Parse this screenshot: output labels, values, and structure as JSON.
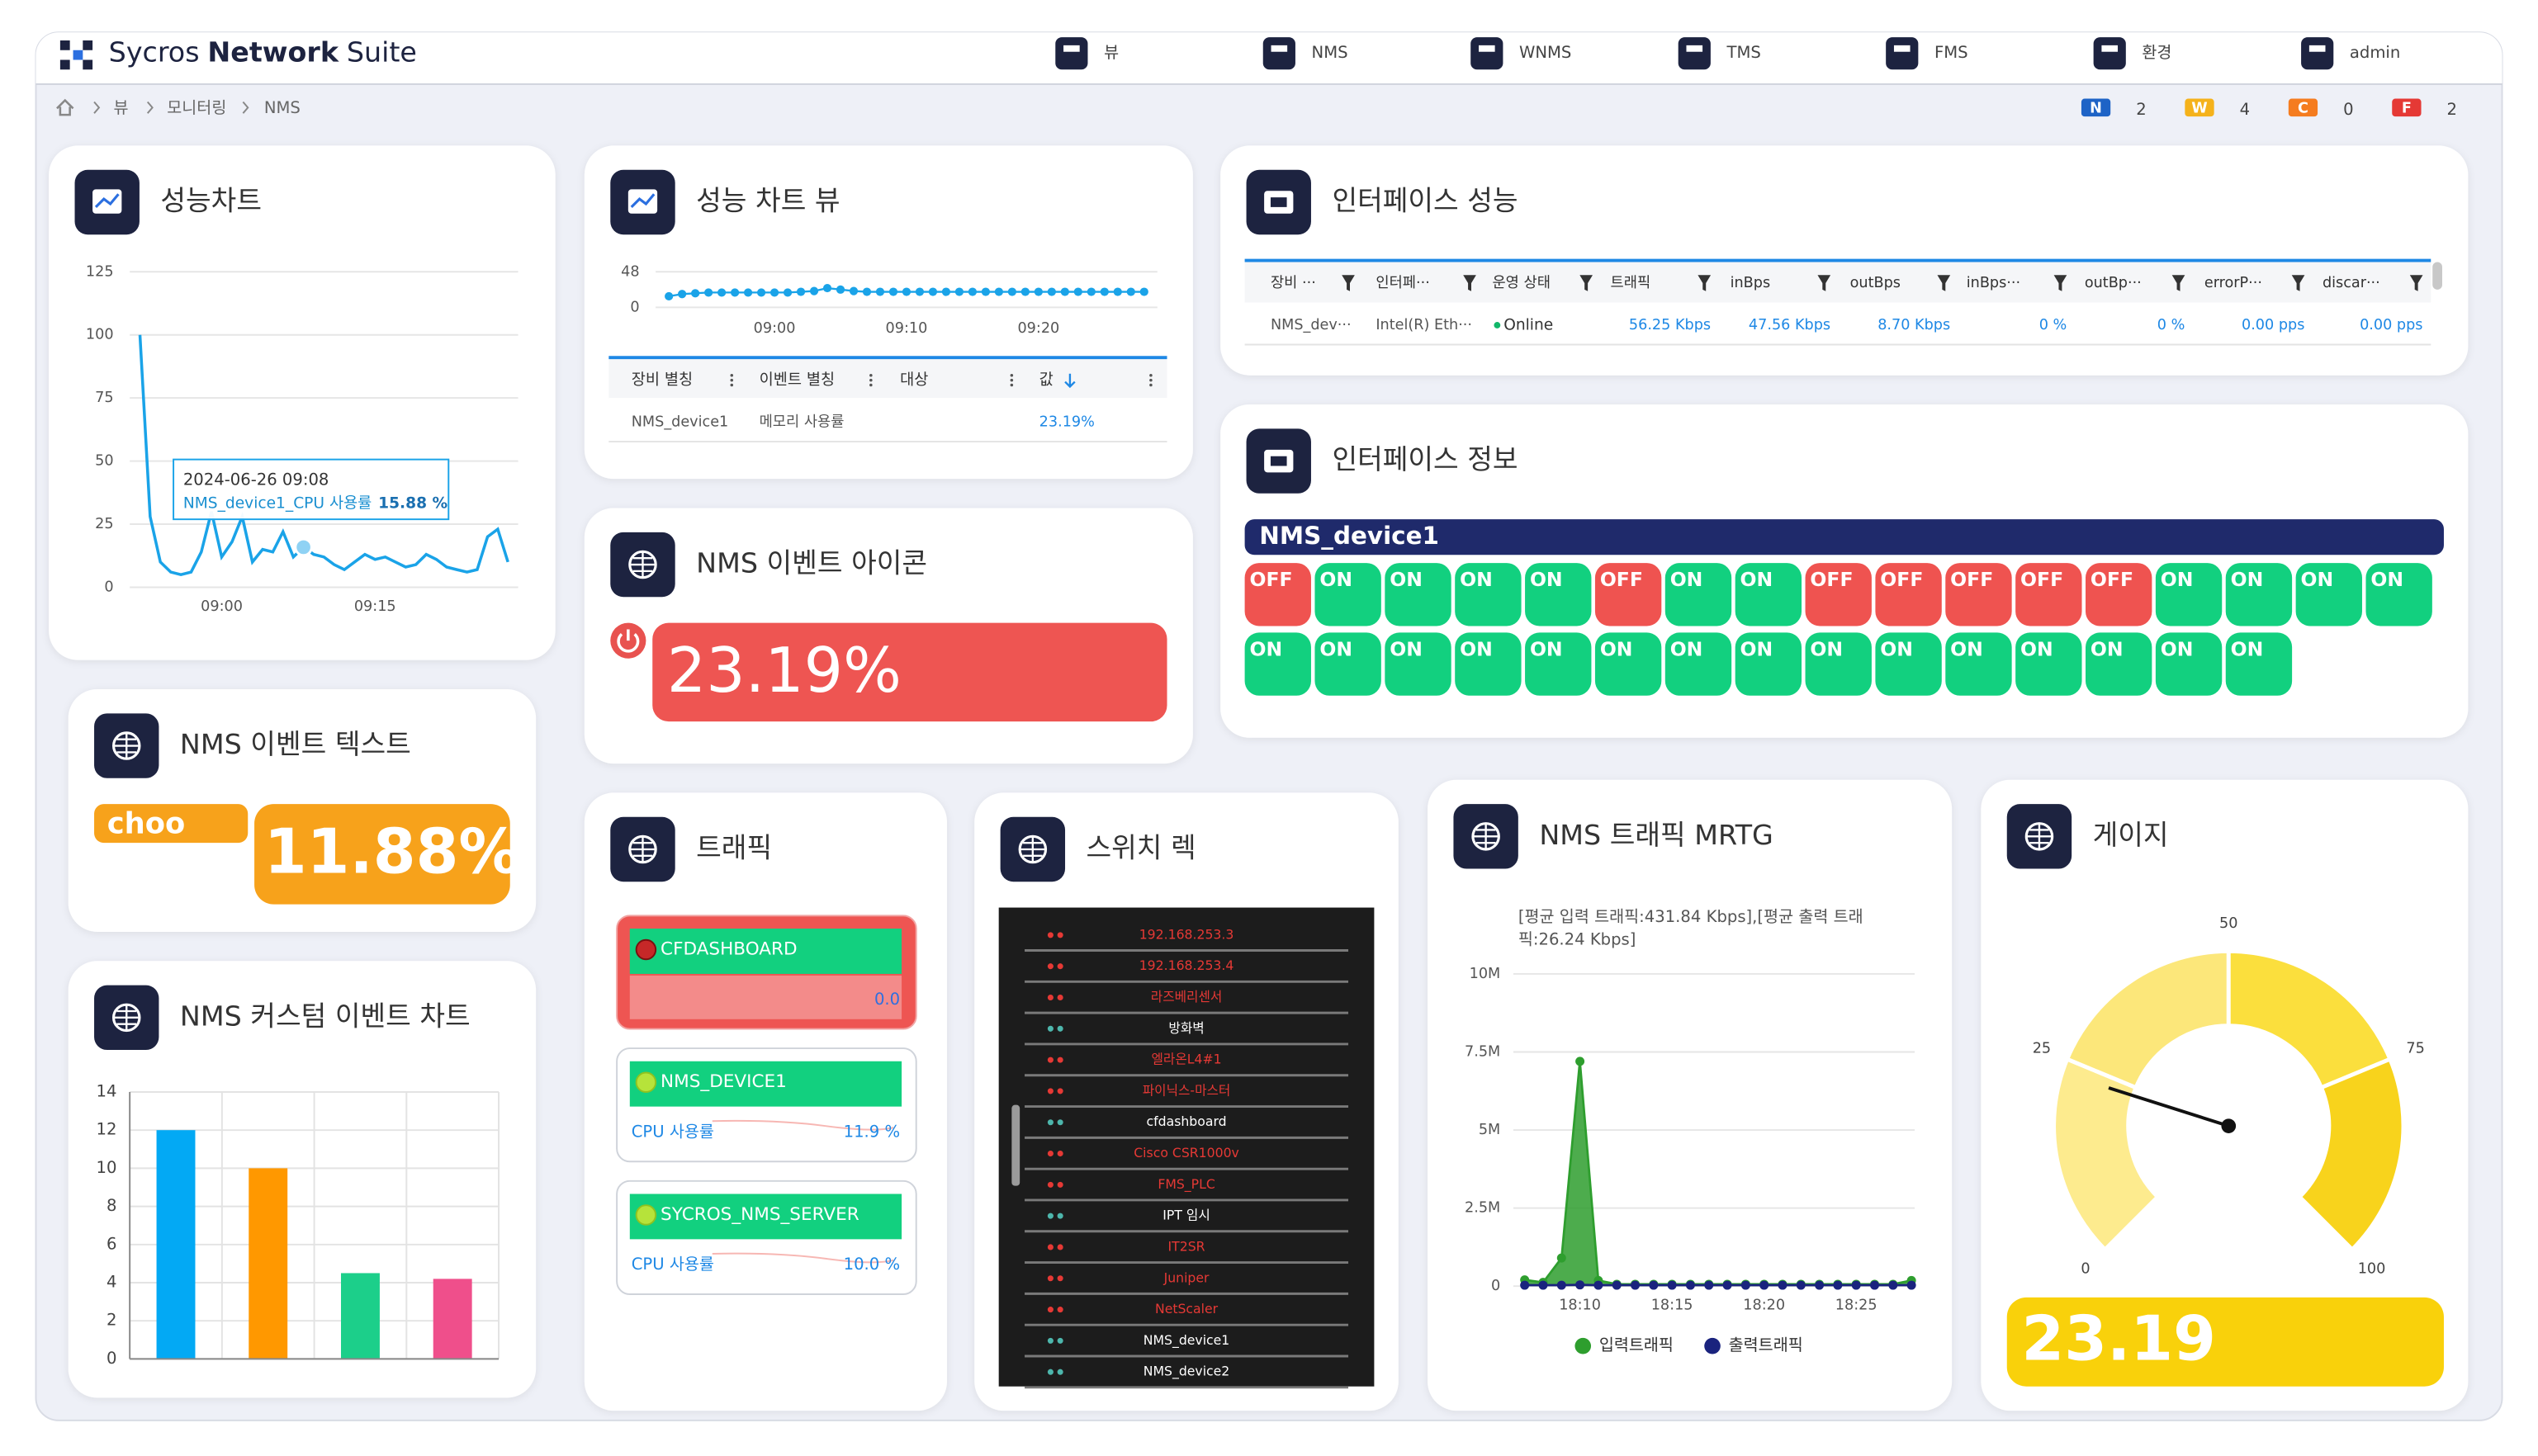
{
  "header": {
    "brand_pre": "Sycros",
    "brand_bold": "Network",
    "brand_post": "Suite",
    "nav": [
      "뷰",
      "NMS",
      "WNMS",
      "TMS",
      "FMS",
      "환경",
      "admin"
    ]
  },
  "breadcrumb": [
    "뷰",
    "모니터링",
    "NMS"
  ],
  "status": [
    {
      "label": "N",
      "count": 2,
      "color": "#1e63c6"
    },
    {
      "label": "W",
      "count": 4,
      "color": "#f5b21b"
    },
    {
      "label": "C",
      "count": 0,
      "color": "#f57c1f"
    },
    {
      "label": "F",
      "count": 2,
      "color": "#e53935"
    }
  ],
  "widgets": {
    "perf_chart": {
      "title": "성능차트",
      "chart": {
        "type": "line",
        "color": "#1aa3e8",
        "grid": true,
        "x": [
          532,
          533,
          534,
          535,
          536,
          537,
          538,
          539,
          540,
          541,
          542,
          543,
          544,
          545,
          546,
          547,
          548,
          549,
          550,
          551,
          552,
          553,
          554,
          555,
          556,
          557,
          558,
          559,
          560,
          561,
          562,
          563,
          564,
          565,
          566,
          567,
          568
        ],
        "values": [
          100,
          28,
          10,
          6,
          5,
          6,
          14,
          30,
          12,
          18,
          28,
          10,
          15,
          14,
          22,
          12,
          15.88,
          13,
          12,
          9,
          7,
          10,
          13,
          11,
          12,
          10,
          8,
          9,
          13,
          11,
          8,
          7,
          6,
          7,
          20,
          23,
          10
        ],
        "xlim": [
          531,
          569
        ],
        "ylim": [
          0,
          125
        ],
        "yticks": [
          0,
          25,
          50,
          75,
          100,
          125
        ],
        "xticks": [
          {
            "value": 540,
            "label": "09:00"
          },
          {
            "value": 555,
            "label": "09:15"
          }
        ]
      },
      "tooltip": {
        "time": "2024-06-26 09:08",
        "series": "NMS_device1_CPU 사용률",
        "value": "15.88 %"
      }
    },
    "perf_view": {
      "title": "성능 차트 뷰",
      "chart": {
        "type": "line",
        "color": "#1aa3e8",
        "grid": true,
        "dots": true,
        "x": [
          532,
          533,
          534,
          535,
          536,
          537,
          538,
          539,
          540,
          541,
          542,
          543,
          544,
          545,
          546,
          547,
          548,
          549,
          550,
          551,
          552,
          553,
          554,
          555,
          556,
          557,
          558,
          559,
          560,
          561,
          562,
          563,
          564,
          565,
          566,
          567,
          568
        ],
        "values": [
          15,
          18,
          19,
          20,
          20,
          20,
          20,
          20,
          20,
          20,
          21,
          22,
          26,
          24,
          22,
          21,
          21,
          21,
          21,
          21,
          21,
          21,
          21,
          21,
          21,
          21,
          21,
          21,
          21,
          21,
          21,
          21,
          21,
          21,
          21,
          21,
          21
        ],
        "xlim": [
          531,
          569
        ],
        "ylim": [
          0,
          48
        ],
        "yticks": [
          0,
          48
        ],
        "xticks": [
          {
            "value": 540,
            "label": "09:00"
          },
          {
            "value": 550,
            "label": "09:10"
          },
          {
            "value": 560,
            "label": "09:20"
          }
        ]
      },
      "table": {
        "columns": [
          "장비 별칭",
          "이벤트 별칭",
          "대상",
          "값"
        ],
        "row": {
          "device": "NMS_device1",
          "event": "메모리 사용률",
          "value": "23.19%"
        }
      }
    },
    "iface_perf": {
      "title": "인터페이스 성능",
      "columns": [
        "장비 ···",
        "인터페···",
        "운영 상태",
        "트래픽",
        "inBps",
        "outBps",
        "inBps···",
        "outBp···",
        "errorP···",
        "discar···"
      ],
      "row": [
        "NMS_dev···",
        "Intel(R) Eth···",
        "Online",
        "56.25 Kbps",
        "47.56 Kbps",
        "8.70 Kbps",
        "0 %",
        "0 %",
        "0.00 pps",
        "0.00 pps"
      ]
    },
    "iface_info": {
      "title": "인터페이스 정보",
      "device": "NMS_device1",
      "on_color": "#12d07f",
      "off_color": "#ef5350",
      "ports": [
        "OFF",
        "ON",
        "ON",
        "ON",
        "ON",
        "OFF",
        "ON",
        "ON",
        "OFF",
        "OFF",
        "OFF",
        "OFF",
        "OFF",
        "ON",
        "ON",
        "ON",
        "ON",
        "ON",
        "ON",
        "ON",
        "ON",
        "ON",
        "ON",
        "ON",
        "ON",
        "ON",
        "ON",
        "ON",
        "ON",
        "ON",
        "ON",
        "ON"
      ]
    },
    "event_icon": {
      "title": "NMS 이벤트 아이콘",
      "value": "23.19%"
    },
    "event_text": {
      "title": "NMS 이벤트 텍스트",
      "label": "choo",
      "value": "11.88%"
    },
    "custom_chart": {
      "title": "NMS 커스텀 이벤트 차트",
      "chart": {
        "type": "bar",
        "grid": true,
        "categories": [
          null,
          null,
          null,
          null
        ],
        "values": [
          12,
          10,
          4.5,
          4.2
        ],
        "colors": [
          "#03a9f4",
          "#ff9800",
          "#1ccf8a",
          "#ef4f8b"
        ],
        "ylim": [
          0,
          14
        ],
        "yticks": [
          0,
          2,
          4,
          6,
          8,
          10,
          12,
          14
        ]
      }
    },
    "traffic": {
      "title": "트래픽",
      "items": [
        {
          "name": "CFDASHBOARD",
          "value": "0.0",
          "alert": true
        },
        {
          "name": "NMS_DEVICE1",
          "metric": "CPU 사용률",
          "value": "11.9 %",
          "alert": false
        },
        {
          "name": "SYCROS_NMS_SERVER",
          "metric": "CPU 사용률",
          "value": "10.0 %",
          "alert": false
        }
      ]
    },
    "rack": {
      "title": "스위치 렉",
      "rows": [
        {
          "name": "192.168.253.3",
          "alert": true
        },
        {
          "name": "192.168.253.4",
          "alert": true
        },
        {
          "name": "라즈베리센서",
          "alert": true
        },
        {
          "name": "방화벽",
          "alert": false
        },
        {
          "name": "엘라온L4#1",
          "alert": true
        },
        {
          "name": "파이닉스-마스터",
          "alert": true
        },
        {
          "name": "cfdashboard",
          "alert": false
        },
        {
          "name": "Cisco CSR1000v",
          "alert": true
        },
        {
          "name": "FMS_PLC",
          "alert": true
        },
        {
          "name": "IPT 임시",
          "alert": false
        },
        {
          "name": "IT2SR",
          "alert": true
        },
        {
          "name": "Juniper",
          "alert": true
        },
        {
          "name": "NetScaler",
          "alert": true
        },
        {
          "name": "NMS_device1",
          "alert": false
        },
        {
          "name": "NMS_device2",
          "alert": false
        }
      ]
    },
    "mrtg": {
      "title": "NMS 트래픽 MRTG",
      "subtitle": "[평균 입력 트래픽:431.84 Kbps],[평균 출력 트래픽:26.24 Kbps]",
      "chart": {
        "type": "line",
        "grid": true,
        "dots": true,
        "x": [
          1087,
          1088,
          1089,
          1090,
          1091,
          1092,
          1093,
          1094,
          1095,
          1096,
          1097,
          1098,
          1099,
          1100,
          1101,
          1102,
          1103,
          1104,
          1105,
          1106,
          1107,
          1108
        ],
        "series": [
          {
            "name": "입력트래픽",
            "color": "#2e9e2e",
            "area": true,
            "values": [
              200000,
              120000,
              900000,
              7200000,
              180000,
              60000,
              60000,
              60000,
              60000,
              60000,
              60000,
              60000,
              60000,
              60000,
              60000,
              60000,
              60000,
              60000,
              60000,
              60000,
              60000,
              180000
            ]
          },
          {
            "name": "출력트래픽",
            "color": "#1a237e",
            "values": [
              30000,
              30000,
              30000,
              40000,
              30000,
              30000,
              30000,
              30000,
              30000,
              30000,
              30000,
              30000,
              30000,
              30000,
              30000,
              30000,
              30000,
              30000,
              30000,
              30000,
              30000,
              30000
            ]
          }
        ],
        "xlim": [
          1087,
          1108
        ],
        "ylim": [
          0,
          10000000
        ],
        "yticks": [
          0,
          {
            "value": 2500000,
            "label": "2.5M"
          },
          {
            "value": 5000000,
            "label": "5M"
          },
          {
            "value": 7500000,
            "label": "7.5M"
          },
          {
            "value": 10000000,
            "label": "10M"
          }
        ],
        "xticks": [
          {
            "value": 1090,
            "label": "18:10"
          },
          {
            "value": 1095,
            "label": "18:15"
          },
          {
            "value": 1100,
            "label": "18:20"
          },
          {
            "value": 1105,
            "label": "18:25"
          }
        ]
      }
    },
    "gauge": {
      "title": "게이지",
      "chart": {
        "type": "gauge",
        "value": 23.19,
        "ylim": [
          0,
          100
        ],
        "yticks": [
          0,
          25,
          50,
          75,
          100
        ],
        "bands": [
          "#fdeb8e",
          "#fce77a",
          "#fbdf3d",
          "#f8d31c"
        ],
        "box_color": "#f9d10b"
      }
    }
  }
}
